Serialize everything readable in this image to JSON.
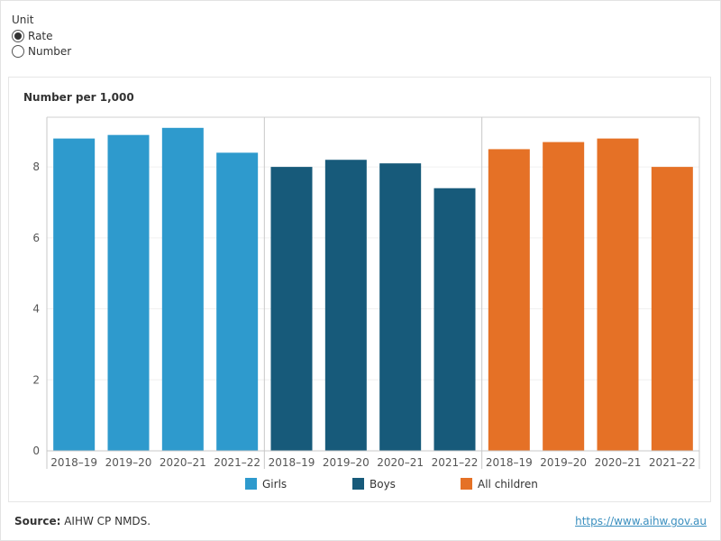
{
  "filter": {
    "label": "Unit",
    "options": [
      {
        "label": "Rate",
        "selected": true
      },
      {
        "label": "Number",
        "selected": false
      }
    ]
  },
  "chart_data": {
    "type": "bar",
    "ylabel": "Number per 1,000",
    "ylim": [
      0,
      9.4
    ],
    "yticks": [
      0,
      2,
      4,
      6,
      8
    ],
    "categories": [
      "2018–19",
      "2019–20",
      "2020–21",
      "2021–22"
    ],
    "series": [
      {
        "name": "Girls",
        "color": "#2e9acd",
        "values": [
          8.8,
          8.9,
          9.1,
          8.4
        ]
      },
      {
        "name": "Boys",
        "color": "#175a7a",
        "values": [
          8.0,
          8.2,
          8.1,
          7.4
        ]
      },
      {
        "name": "All children",
        "color": "#e57126",
        "values": [
          8.5,
          8.7,
          8.8,
          8.0
        ]
      }
    ]
  },
  "footer": {
    "source_label": "Source:",
    "source_text": " AIHW CP NMDS.",
    "link": "https://www.aihw.gov.au"
  }
}
